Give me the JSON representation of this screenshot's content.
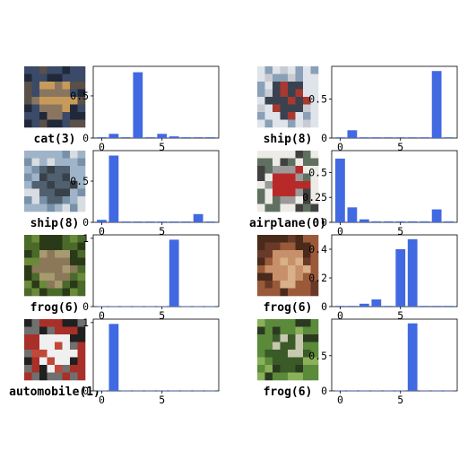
{
  "figure": {
    "panels": [
      {
        "image": {
          "subject": "cat",
          "palette": [
            "#3b4a68",
            "#c89a5a",
            "#5a5048",
            "#8a7660",
            "#20283a"
          ]
        },
        "caption": "cat(3)",
        "chart_data": {
          "type": "bar",
          "x": [
            0,
            1,
            2,
            3,
            4,
            5,
            6,
            7,
            8,
            9
          ],
          "values": [
            0.01,
            0.05,
            0.01,
            0.78,
            0.01,
            0.05,
            0.02,
            0.01,
            0.01,
            0.01
          ],
          "ylim": [
            0,
            0.85
          ],
          "yticks": [
            0,
            0.5
          ],
          "ytick_labels": [
            "0",
            "0.5"
          ],
          "xticks": [
            0,
            5
          ],
          "xtick_labels": [
            "0",
            "5"
          ],
          "bar_color": "#4169e1"
        }
      },
      {
        "image": {
          "subject": "ship",
          "palette": [
            "#dfe4ea",
            "#3a4250",
            "#c8ccd2",
            "#a83830",
            "#8aa0b8"
          ]
        },
        "caption": "ship(8)",
        "chart_data": {
          "type": "bar",
          "x": [
            0,
            1,
            2,
            3,
            4,
            5,
            6,
            7,
            8,
            9
          ],
          "values": [
            0.01,
            0.1,
            0.01,
            0.01,
            0.01,
            0.01,
            0.01,
            0.01,
            0.86,
            0.01
          ],
          "ylim": [
            0,
            0.92
          ],
          "yticks": [
            0,
            0.5
          ],
          "ytick_labels": [
            "0",
            "0.5"
          ],
          "xticks": [
            0,
            5
          ],
          "xtick_labels": [
            "0",
            "5"
          ],
          "bar_color": "#4169e1"
        }
      },
      {
        "image": {
          "subject": "ship",
          "palette": [
            "#9fb4c8",
            "#506070",
            "#d8dde2",
            "#384048",
            "#7890a8"
          ]
        },
        "caption": "ship(8)",
        "chart_data": {
          "type": "bar",
          "x": [
            0,
            1,
            2,
            3,
            4,
            5,
            6,
            7,
            8,
            9
          ],
          "values": [
            0.03,
            0.81,
            0.01,
            0.01,
            0.01,
            0.01,
            0.01,
            0.01,
            0.1,
            0.01
          ],
          "ylim": [
            0,
            0.87
          ],
          "yticks": [
            0,
            0.5
          ],
          "ytick_labels": [
            "0",
            "0.5"
          ],
          "xticks": [
            0,
            5
          ],
          "xtick_labels": [
            "0",
            "5"
          ],
          "bar_color": "#4169e1"
        }
      },
      {
        "image": {
          "subject": "airplane",
          "palette": [
            "#ecebe6",
            "#b82a2a",
            "#404040",
            "#9a9a98",
            "#607060"
          ]
        },
        "caption": "airplane(0)",
        "chart_data": {
          "type": "bar",
          "x": [
            0,
            1,
            2,
            3,
            4,
            5,
            6,
            7,
            8,
            9
          ],
          "values": [
            0.64,
            0.15,
            0.03,
            0.01,
            0.01,
            0.01,
            0.01,
            0.01,
            0.13,
            0.01
          ],
          "ylim": [
            0,
            0.72
          ],
          "yticks": [
            0,
            0.25,
            0.5
          ],
          "ytick_labels": [
            "0",
            "0.25",
            "0.5"
          ],
          "xticks": [
            0,
            5
          ],
          "xtick_labels": [
            "0",
            "5"
          ],
          "bar_color": "#4169e1"
        }
      },
      {
        "image": {
          "subject": "frog",
          "palette": [
            "#4a6a2a",
            "#8a7858",
            "#2a3a18",
            "#a89a70",
            "#6a8a3a"
          ]
        },
        "caption": "frog(6)",
        "chart_data": {
          "type": "bar",
          "x": [
            0,
            1,
            2,
            3,
            4,
            5,
            6,
            7,
            8,
            9
          ],
          "values": [
            0.005,
            0.005,
            0.005,
            0.005,
            0.005,
            0.005,
            0.98,
            0.005,
            0.005,
            0.005
          ],
          "ylim": [
            0,
            1.05
          ],
          "yticks": [
            0,
            1
          ],
          "ytick_labels": [
            "0",
            "1"
          ],
          "xticks": [
            0,
            5
          ],
          "xtick_labels": [
            "0",
            "5"
          ],
          "bar_color": "#4169e1"
        }
      },
      {
        "image": {
          "subject": "frog",
          "palette": [
            "#9a5a3a",
            "#c8906a",
            "#6a3a28",
            "#d8b08a",
            "#4a2a1a"
          ]
        },
        "caption": "frog(6)",
        "chart_data": {
          "type": "bar",
          "x": [
            0,
            1,
            2,
            3,
            4,
            5,
            6,
            7,
            8,
            9
          ],
          "values": [
            0.005,
            0.005,
            0.02,
            0.05,
            0.005,
            0.4,
            0.47,
            0.005,
            0.005,
            0.005
          ],
          "ylim": [
            0,
            0.5
          ],
          "yticks": [
            0,
            0.2,
            0.4
          ],
          "ytick_labels": [
            "0",
            "0.2",
            "0.4"
          ],
          "xticks": [
            0,
            5
          ],
          "xtick_labels": [
            "0",
            "5"
          ],
          "bar_color": "#4169e1"
        }
      },
      {
        "image": {
          "subject": "automobile",
          "palette": [
            "#a83028",
            "#f0f0f0",
            "#202020",
            "#c04838",
            "#707070"
          ]
        },
        "caption": "automobile(1)",
        "chart_data": {
          "type": "bar",
          "x": [
            0,
            1,
            2,
            3,
            4,
            5,
            6,
            7,
            8,
            9
          ],
          "values": [
            0.005,
            0.98,
            0.005,
            0.005,
            0.005,
            0.005,
            0.005,
            0.005,
            0.005,
            0.005
          ],
          "ylim": [
            0,
            1.05
          ],
          "yticks": [
            0,
            1
          ],
          "ytick_labels": [
            "0",
            "1"
          ],
          "xticks": [
            0,
            5
          ],
          "xtick_labels": [
            "0",
            "5"
          ],
          "bar_color": "#4169e1"
        }
      },
      {
        "image": {
          "subject": "frog",
          "palette": [
            "#5a8a3a",
            "#3a5a28",
            "#8ab05a",
            "#c8c8b0",
            "#2a3a20"
          ]
        },
        "caption": "frog(6)",
        "chart_data": {
          "type": "bar",
          "x": [
            0,
            1,
            2,
            3,
            4,
            5,
            6,
            7,
            8,
            9
          ],
          "values": [
            0.005,
            0.005,
            0.005,
            0.005,
            0.005,
            0.005,
            0.96,
            0.005,
            0.005,
            0.005
          ],
          "ylim": [
            0,
            1.02
          ],
          "yticks": [
            0,
            0.5
          ],
          "ytick_labels": [
            "0",
            "0.5"
          ],
          "xticks": [
            0,
            5
          ],
          "xtick_labels": [
            "0",
            "5"
          ],
          "bar_color": "#4169e1"
        }
      }
    ]
  }
}
